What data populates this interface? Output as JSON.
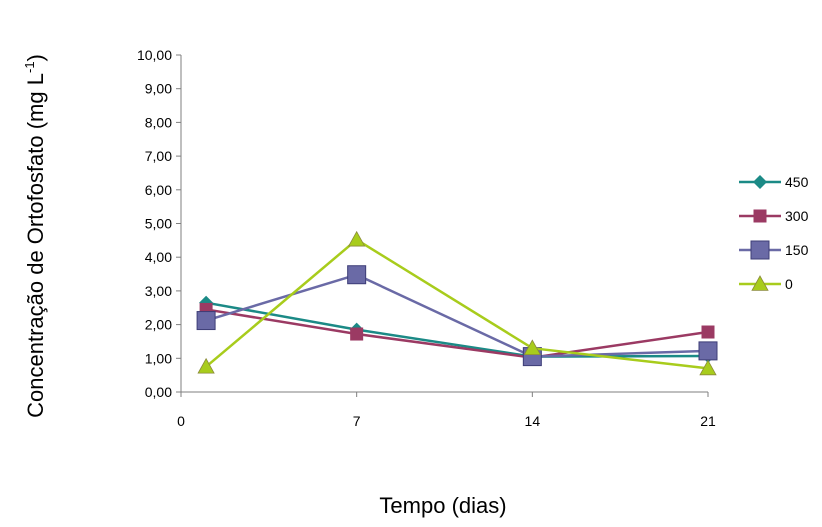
{
  "chart_data": {
    "type": "line",
    "title": "",
    "xlabel": "Tempo (dias)",
    "ylabel_main": "Concentração de Ortofosfato (mg L",
    "ylabel_sup": "-1",
    "ylabel_end": ")",
    "x_ticks": [
      "0",
      "7",
      "14",
      "21"
    ],
    "y_ticks": [
      "0,00",
      "1,00",
      "2,00",
      "3,00",
      "4,00",
      "5,00",
      "6,00",
      "7,00",
      "8,00",
      "9,00",
      "10,00"
    ],
    "xlim": [
      0,
      21
    ],
    "ylim": [
      0,
      10
    ],
    "x": [
      1,
      7,
      14,
      21
    ],
    "series": [
      {
        "name": "450",
        "color": "#1b8a86",
        "marker": "diamond",
        "values": [
          2.65,
          1.85,
          1.05,
          1.07
        ]
      },
      {
        "name": "300",
        "color": "#9b3a63",
        "marker": "square-small",
        "values": [
          2.45,
          1.72,
          1.02,
          1.78
        ]
      },
      {
        "name": "150",
        "color": "#6a6aa6",
        "marker": "square-large",
        "values": [
          2.12,
          3.48,
          1.05,
          1.22
        ]
      },
      {
        "name": "0",
        "color": "#a8cc1c",
        "marker": "triangle",
        "values": [
          0.75,
          4.52,
          1.3,
          0.7
        ]
      }
    ],
    "grid": false,
    "legend_position": "right"
  }
}
